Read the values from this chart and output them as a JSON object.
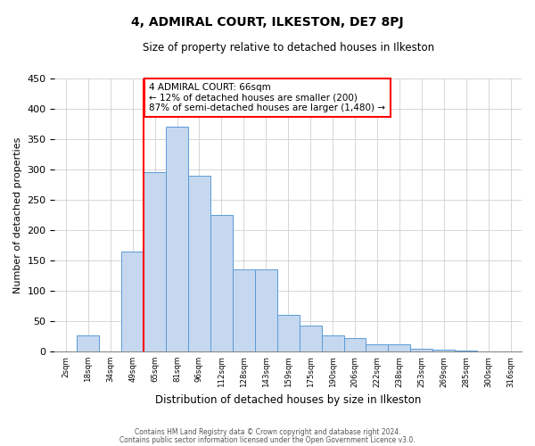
{
  "title": "4, ADMIRAL COURT, ILKESTON, DE7 8PJ",
  "subtitle": "Size of property relative to detached houses in Ilkeston",
  "xlabel": "Distribution of detached houses by size in Ilkeston",
  "ylabel": "Number of detached properties",
  "bin_labels": [
    "2sqm",
    "18sqm",
    "34sqm",
    "49sqm",
    "65sqm",
    "81sqm",
    "96sqm",
    "112sqm",
    "128sqm",
    "143sqm",
    "159sqm",
    "175sqm",
    "190sqm",
    "206sqm",
    "222sqm",
    "238sqm",
    "253sqm",
    "269sqm",
    "285sqm",
    "300sqm",
    "316sqm"
  ],
  "bar_values": [
    0,
    27,
    0,
    165,
    295,
    370,
    290,
    225,
    135,
    135,
    60,
    42,
    27,
    22,
    12,
    12,
    5,
    3,
    1,
    0,
    0
  ],
  "bar_color": "#c5d8f0",
  "bar_edge_color": "#5b9bd5",
  "red_line_index": 4,
  "ylim": [
    0,
    450
  ],
  "yticks": [
    0,
    50,
    100,
    150,
    200,
    250,
    300,
    350,
    400,
    450
  ],
  "annotation_title": "4 ADMIRAL COURT: 66sqm",
  "annotation_line1": "← 12% of detached houses are smaller (200)",
  "annotation_line2": "87% of semi-detached houses are larger (1,480) →",
  "footer_line1": "Contains HM Land Registry data © Crown copyright and database right 2024.",
  "footer_line2": "Contains public sector information licensed under the Open Government Licence v3.0.",
  "background_color": "#ffffff",
  "grid_color": "#d0d0d0"
}
